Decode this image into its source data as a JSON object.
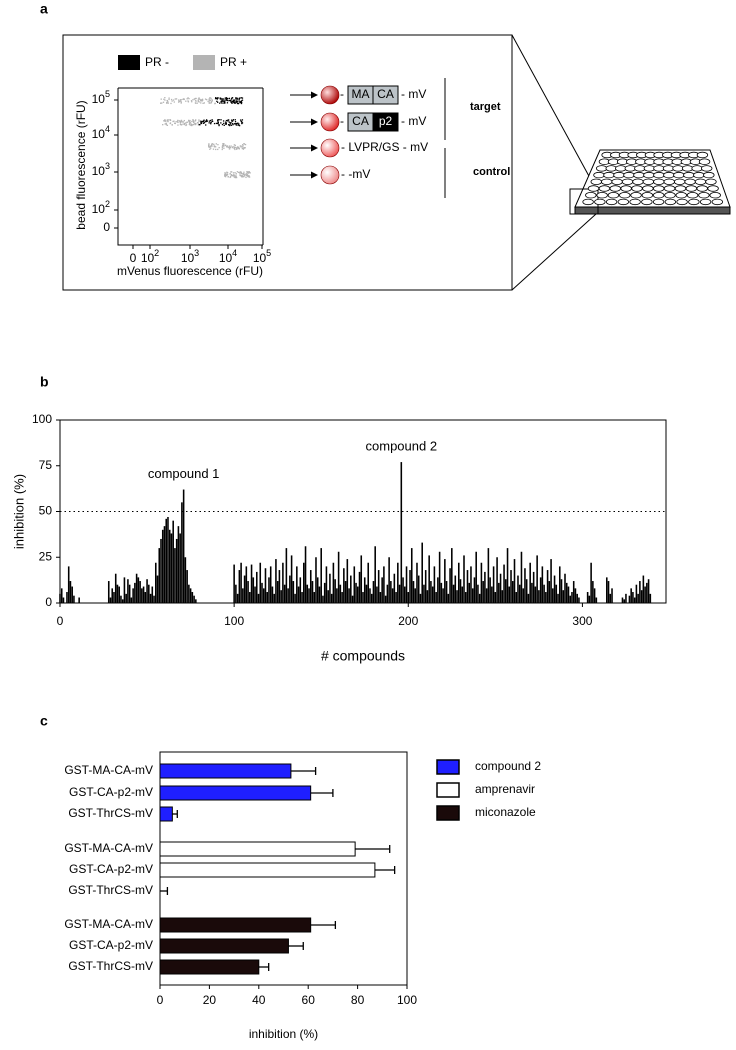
{
  "panel_labels": [
    "a",
    "b",
    "c"
  ],
  "panel_a": {
    "legend": [
      {
        "name": "PR -",
        "color": "#000000"
      },
      {
        "name": "PR +",
        "color": "#b4b4b4"
      }
    ],
    "y_label": "bead fluorescence (rFU)",
    "x_label": "mVenus fluorescence (rFU)",
    "y_tick_labels": [
      [
        "10",
        "5"
      ],
      [
        "10",
        "4"
      ],
      [
        "10",
        "3"
      ],
      [
        "10",
        "2"
      ],
      [
        "0"
      ]
    ],
    "x_tick_labels": [
      [
        "0"
      ],
      [
        "10",
        "2"
      ],
      [
        "10",
        "3"
      ],
      [
        "10",
        "4"
      ],
      [
        "10",
        "5"
      ]
    ],
    "constructs": [
      {
        "prefix": "-",
        "boxes": [
          "MA",
          "CA"
        ],
        "suffix": "- mV"
      },
      {
        "prefix": "-",
        "boxes": [
          "CA",
          "p2"
        ],
        "suffix": "- mV"
      },
      {
        "text": "- LVPR/GS - mV"
      },
      {
        "text": "-  -mV"
      }
    ],
    "groups": [
      "target",
      "control"
    ]
  },
  "chart_data": [
    {
      "type": "bar",
      "x_label": "# compounds",
      "y_label": "inhibition (%)",
      "color": "#000000",
      "xlim": [
        0,
        348
      ],
      "ylim": [
        0,
        100
      ],
      "xticks": [
        0,
        100,
        200,
        300
      ],
      "yticks": [
        0,
        25,
        50,
        75,
        100
      ],
      "threshold": 50,
      "annotations": [
        {
          "text": "compound 1",
          "x": 71,
          "y": 62
        },
        {
          "text": "compound 2",
          "x": 196,
          "y": 77
        }
      ],
      "values": [
        5,
        8,
        3,
        0,
        6,
        20,
        12,
        9,
        4,
        0,
        0,
        3,
        0,
        0,
        0,
        0,
        0,
        0,
        0,
        0,
        0,
        0,
        0,
        0,
        0,
        0,
        0,
        0,
        12,
        3,
        8,
        6,
        16,
        10,
        9,
        4,
        2,
        14,
        5,
        13,
        10,
        3,
        8,
        11,
        16,
        14,
        12,
        8,
        9,
        6,
        13,
        10,
        5,
        9,
        4,
        22,
        15,
        30,
        35,
        40,
        42,
        46,
        47,
        40,
        38,
        45,
        30,
        35,
        42,
        38,
        55,
        62,
        25,
        18,
        10,
        8,
        6,
        4,
        2,
        0,
        0,
        0,
        0,
        0,
        0,
        0,
        0,
        0,
        0,
        0,
        0,
        0,
        0,
        0,
        0,
        0,
        0,
        0,
        0,
        0,
        21,
        10,
        5,
        18,
        22,
        8,
        15,
        20,
        12,
        6,
        21,
        14,
        9,
        17,
        5,
        22,
        11,
        8,
        19,
        6,
        14,
        20,
        9,
        5,
        24,
        12,
        18,
        7,
        22,
        10,
        30,
        8,
        15,
        26,
        12,
        5,
        20,
        9,
        14,
        6,
        22,
        31,
        10,
        8,
        18,
        12,
        6,
        25,
        14,
        9,
        30,
        4,
        11,
        20,
        7,
        16,
        5,
        22,
        13,
        8,
        28,
        10,
        6,
        19,
        12,
        24,
        8,
        15,
        4,
        20,
        11,
        9,
        17,
        26,
        6,
        14,
        10,
        22,
        8,
        5,
        12,
        31,
        9,
        18,
        6,
        14,
        20,
        4,
        10,
        25,
        12,
        8,
        16,
        6,
        22,
        10,
        77,
        14,
        9,
        20,
        6,
        18,
        30,
        12,
        8,
        22,
        15,
        5,
        33,
        10,
        18,
        7,
        26,
        12,
        9,
        20,
        6,
        14,
        28,
        11,
        8,
        24,
        12,
        5,
        19,
        30,
        10,
        15,
        7,
        22,
        13,
        9,
        26,
        6,
        18,
        11,
        20,
        8,
        14,
        28,
        10,
        5,
        22,
        12,
        17,
        8,
        30,
        14,
        9,
        20,
        6,
        25,
        11,
        16,
        7,
        21,
        13,
        30,
        9,
        18,
        12,
        24,
        6,
        15,
        10,
        28,
        8,
        19,
        13,
        5,
        22,
        11,
        17,
        9,
        26,
        7,
        14,
        20,
        10,
        6,
        18,
        12,
        24,
        8,
        15,
        10,
        5,
        20,
        13,
        7,
        16,
        11,
        9,
        4,
        6,
        12,
        8,
        5,
        3,
        0,
        0,
        0,
        0,
        6,
        4,
        22,
        12,
        8,
        3,
        0,
        0,
        0,
        0,
        0,
        14,
        12,
        5,
        8,
        0,
        0,
        0,
        0,
        0,
        3,
        2,
        5,
        0,
        4,
        8,
        6,
        3,
        10,
        5,
        12,
        7,
        15,
        9,
        11,
        13,
        5
      ]
    },
    {
      "type": "hbar",
      "x_label": "inhibition (%)",
      "xlim": [
        0,
        100
      ],
      "xticks": [
        0,
        20,
        40,
        60,
        80,
        100
      ],
      "categories": [
        "GST-MA-CA-mV",
        "GST-CA-p2-mV",
        "GST-ThrCS-mV"
      ],
      "series": [
        {
          "name": "compound 2",
          "color": "#1f1fff",
          "values": [
            53,
            61,
            5
          ],
          "errors": [
            10,
            9,
            2
          ]
        },
        {
          "name": "amprenavir",
          "color": "#ffffff",
          "values": [
            79,
            87,
            0
          ],
          "errors": [
            14,
            8,
            3
          ]
        },
        {
          "name": "miconazole",
          "color": "#1a0a0a",
          "values": [
            61,
            52,
            40
          ],
          "errors": [
            10,
            6,
            4
          ]
        }
      ]
    }
  ]
}
